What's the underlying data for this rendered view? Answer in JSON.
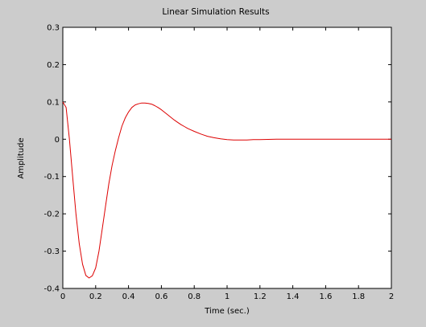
{
  "colors": {
    "figure_background": "#cccccc",
    "plot_background": "#ffffff",
    "axes": "#000000",
    "series": "#dd0000"
  },
  "chart_data": {
    "type": "line",
    "title": "Linear Simulation Results",
    "xlabel": "Time (sec.)",
    "ylabel": "Amplitude",
    "xlim": [
      0,
      2
    ],
    "ylim": [
      -0.4,
      0.3
    ],
    "grid": false,
    "legend": "none",
    "x_ticks": [
      0,
      0.2,
      0.4,
      0.6,
      0.8,
      1,
      1.2,
      1.4,
      1.6,
      1.8,
      2
    ],
    "x_tick_labels": [
      "0",
      "0.2",
      "0.4",
      "0.6",
      "0.8",
      "1",
      "1.2",
      "1.4",
      "1.6",
      "1.8",
      "2"
    ],
    "y_ticks": [
      -0.4,
      -0.3,
      -0.2,
      -0.1,
      0,
      0.1,
      0.2,
      0.3
    ],
    "y_tick_labels": [
      "-0.4",
      "-0.3",
      "-0.2",
      "-0.1",
      "0",
      "0.1",
      "0.2",
      "0.3"
    ],
    "series": [
      {
        "x": [
          0,
          0.02,
          0.04,
          0.06,
          0.08,
          0.1,
          0.12,
          0.14,
          0.16,
          0.18,
          0.2,
          0.22,
          0.24,
          0.26,
          0.28,
          0.3,
          0.32,
          0.34,
          0.36,
          0.38,
          0.4,
          0.42,
          0.44,
          0.46,
          0.48,
          0.5,
          0.52,
          0.54,
          0.56,
          0.58,
          0.6,
          0.62,
          0.64,
          0.66,
          0.68,
          0.7,
          0.72,
          0.74,
          0.76,
          0.78,
          0.8,
          0.84,
          0.88,
          0.92,
          0.96,
          1,
          1.04,
          1.08,
          1.12,
          1.16,
          1.2,
          1.3,
          1.4,
          1.5,
          1.6,
          1.7,
          1.8,
          1.9,
          2
        ],
        "y": [
          0.1,
          0.085,
          0.0,
          -0.1,
          -0.2,
          -0.28,
          -0.335,
          -0.365,
          -0.372,
          -0.366,
          -0.345,
          -0.3,
          -0.24,
          -0.18,
          -0.12,
          -0.07,
          -0.03,
          0.005,
          0.035,
          0.057,
          0.073,
          0.085,
          0.092,
          0.095,
          0.097,
          0.097,
          0.096,
          0.094,
          0.09,
          0.085,
          0.079,
          0.072,
          0.065,
          0.058,
          0.051,
          0.045,
          0.039,
          0.034,
          0.029,
          0.025,
          0.021,
          0.014,
          0.008,
          0.004,
          0.001,
          -0.001,
          -0.002,
          -0.002,
          -0.002,
          -0.001,
          -0.001,
          0.0,
          0.0,
          0.0,
          0.0,
          0.0,
          0.0,
          0.0,
          0.0
        ]
      }
    ]
  }
}
